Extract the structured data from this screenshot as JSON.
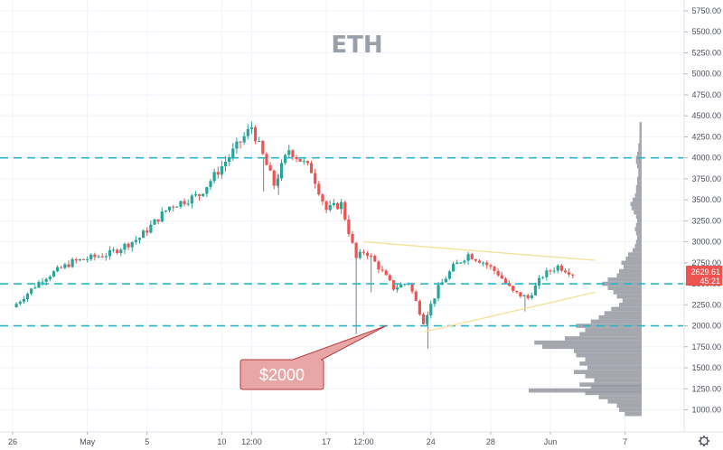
{
  "chart_data": {
    "type": "candlestick",
    "title": "ETH",
    "y_axis": {
      "position": "right",
      "ylim": [
        750,
        5900
      ],
      "ticks": [
        1000,
        1250,
        1500,
        1750,
        2000,
        2250,
        2500,
        2750,
        3000,
        3250,
        3500,
        3750,
        4000,
        4250,
        4500,
        4750,
        5000,
        5250,
        5500,
        5750
      ],
      "tick_labels": [
        "1000.00",
        "1250.00",
        "1500.00",
        "1750.00",
        "2000.00",
        "2250.00",
        "2500.00",
        "2750.00",
        "3000.00",
        "3250.00",
        "3500.00",
        "3750.00",
        "4000.00",
        "4250.00",
        "4500.00",
        "4750.00",
        "5000.00",
        "5250.00",
        "5500.00",
        "5750.00"
      ]
    },
    "x_axis": {
      "tick_labels": [
        "26",
        "May",
        "5",
        "10",
        "12:00",
        "17",
        "12:00",
        "24",
        "28",
        "Jun",
        "7"
      ],
      "tick_days": [
        0,
        5,
        9,
        14,
        16,
        21,
        23.5,
        28,
        32,
        36,
        41
      ]
    },
    "ohlc_anchors": [
      {
        "day": 0.0,
        "close": 2220
      },
      {
        "day": 2.0,
        "close": 2560
      },
      {
        "day": 4.0,
        "close": 2760
      },
      {
        "day": 6.5,
        "close": 2860
      },
      {
        "day": 8.5,
        "close": 3050
      },
      {
        "day": 10.5,
        "close": 3420
      },
      {
        "day": 12.5,
        "close": 3560
      },
      {
        "day": 14.0,
        "close": 3900
      },
      {
        "day": 15.5,
        "close": 4250
      },
      {
        "day": 16.0,
        "close": 4370
      },
      {
        "day": 17.5,
        "close": 3680
      },
      {
        "day": 18.5,
        "close": 4100
      },
      {
        "day": 20.0,
        "close": 3850
      },
      {
        "day": 21.0,
        "close": 3380
      },
      {
        "day": 22.0,
        "close": 3450
      },
      {
        "day": 23.0,
        "close": 2800
      },
      {
        "day": 23.6,
        "close": 2900
      },
      {
        "day": 24.5,
        "close": 2700
      },
      {
        "day": 25.5,
        "close": 2450
      },
      {
        "day": 26.5,
        "close": 2520
      },
      {
        "day": 27.5,
        "close": 2050
      },
      {
        "day": 28.5,
        "close": 2450
      },
      {
        "day": 29.5,
        "close": 2700
      },
      {
        "day": 30.5,
        "close": 2850
      },
      {
        "day": 31.5,
        "close": 2760
      },
      {
        "day": 32.5,
        "close": 2620
      },
      {
        "day": 33.5,
        "close": 2400
      },
      {
        "day": 34.5,
        "close": 2330
      },
      {
        "day": 35.5,
        "close": 2600
      },
      {
        "day": 36.5,
        "close": 2710
      },
      {
        "day": 37.5,
        "close": 2630
      }
    ],
    "wicks": [
      {
        "day": 16.8,
        "low": 3600
      },
      {
        "day": 17.8,
        "low": 3560
      },
      {
        "day": 23.0,
        "low": 1900
      },
      {
        "day": 24.0,
        "low": 2400
      },
      {
        "day": 27.8,
        "low": 1730
      },
      {
        "day": 34.3,
        "low": 2170
      }
    ],
    "horizontal_levels": [
      4000,
      2500,
      2000
    ],
    "triangle": {
      "upper": [
        [
          23.5,
          3000
        ],
        [
          39.0,
          2780
        ]
      ],
      "lower": [
        [
          27.6,
          1930
        ],
        [
          39.0,
          2400
        ]
      ]
    },
    "current_price": {
      "value": 2629.61,
      "label": "2629.61",
      "countdown": "45:21"
    },
    "annotation": {
      "text": "$2000",
      "target_day": 25.0,
      "target_price": 2000
    },
    "volume_profile": {
      "bins": [
        [
          950,
          0.15
        ],
        [
          1000,
          0.2
        ],
        [
          1050,
          0.22
        ],
        [
          1100,
          0.3
        ],
        [
          1150,
          0.38
        ],
        [
          1200,
          0.5
        ],
        [
          1230,
          1.0
        ],
        [
          1270,
          0.45
        ],
        [
          1300,
          0.55
        ],
        [
          1350,
          0.42
        ],
        [
          1400,
          0.5
        ],
        [
          1450,
          0.6
        ],
        [
          1500,
          0.48
        ],
        [
          1550,
          0.55
        ],
        [
          1600,
          0.5
        ],
        [
          1650,
          0.58
        ],
        [
          1700,
          0.6
        ],
        [
          1750,
          0.88
        ],
        [
          1800,
          0.95
        ],
        [
          1850,
          0.68
        ],
        [
          1900,
          0.55
        ],
        [
          1950,
          0.5
        ],
        [
          2000,
          0.58
        ],
        [
          2050,
          0.45
        ],
        [
          2100,
          0.38
        ],
        [
          2150,
          0.33
        ],
        [
          2200,
          0.27
        ],
        [
          2250,
          0.2
        ],
        [
          2300,
          0.17
        ],
        [
          2350,
          0.22
        ],
        [
          2400,
          0.25
        ],
        [
          2450,
          0.3
        ],
        [
          2500,
          0.35
        ],
        [
          2550,
          0.3
        ],
        [
          2600,
          0.22
        ],
        [
          2650,
          0.2
        ],
        [
          2700,
          0.16
        ],
        [
          2750,
          0.18
        ],
        [
          2800,
          0.14
        ],
        [
          2850,
          0.12
        ],
        [
          2900,
          0.08
        ],
        [
          2950,
          0.06
        ],
        [
          3000,
          0.05
        ],
        [
          3050,
          0.04
        ],
        [
          3100,
          0.05
        ],
        [
          3150,
          0.06
        ],
        [
          3200,
          0.05
        ],
        [
          3250,
          0.04
        ],
        [
          3300,
          0.05
        ],
        [
          3350,
          0.07
        ],
        [
          3400,
          0.09
        ],
        [
          3450,
          0.1
        ],
        [
          3500,
          0.08
        ],
        [
          3550,
          0.06
        ],
        [
          3600,
          0.05
        ],
        [
          3650,
          0.05
        ],
        [
          3700,
          0.04
        ],
        [
          3750,
          0.04
        ],
        [
          3800,
          0.03
        ],
        [
          3850,
          0.03
        ],
        [
          3900,
          0.04
        ],
        [
          3950,
          0.05
        ],
        [
          4000,
          0.05
        ],
        [
          4050,
          0.04
        ],
        [
          4100,
          0.03
        ],
        [
          4150,
          0.03
        ],
        [
          4200,
          0.02
        ],
        [
          4250,
          0.02
        ],
        [
          4300,
          0.02
        ],
        [
          4350,
          0.02
        ],
        [
          4400,
          0.02
        ]
      ]
    },
    "grid": true,
    "colors": {
      "up": "#26a69a",
      "down": "#ef5350",
      "level_line": "#2bb5c8",
      "triangle": "#f3e29c",
      "price_badge": "#ef5350",
      "callout_fill": "#e8a6a6",
      "callout_stroke": "#b43a3a",
      "profile": "#9598a1",
      "title": "#9aa0a8"
    }
  },
  "ui": {
    "settings_icon": "gear-icon"
  }
}
